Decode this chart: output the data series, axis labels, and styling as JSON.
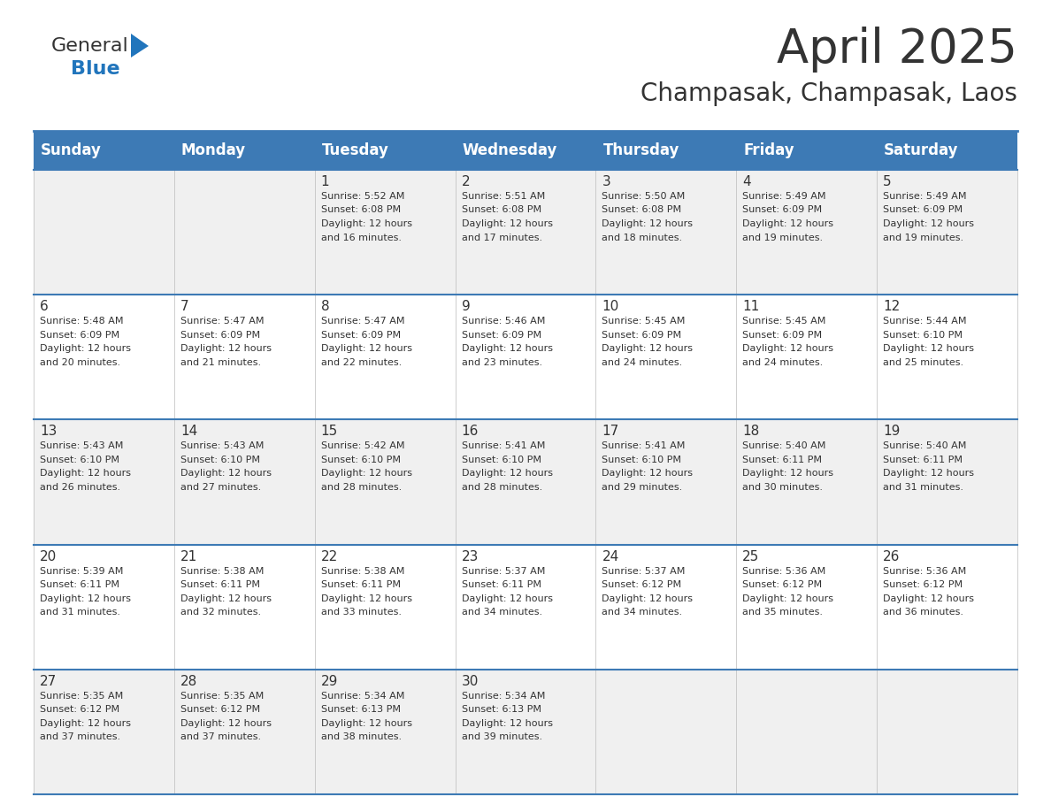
{
  "title": "April 2025",
  "subtitle": "Champasak, Champasak, Laos",
  "header_bg": "#3d7ab5",
  "header_text": "#ffffff",
  "header_days": [
    "Sunday",
    "Monday",
    "Tuesday",
    "Wednesday",
    "Thursday",
    "Friday",
    "Saturday"
  ],
  "row_bg_odd": "#f0f0f0",
  "row_bg_even": "#ffffff",
  "divider_color": "#3d7ab5",
  "text_color": "#333333",
  "logo_general_color": "#333333",
  "logo_blue_color": "#2175bc",
  "days": [
    {
      "day": 1,
      "col": 2,
      "row": 0,
      "sunrise": "5:52 AM",
      "sunset": "6:08 PM",
      "daylight": "12 hours and 16 minutes."
    },
    {
      "day": 2,
      "col": 3,
      "row": 0,
      "sunrise": "5:51 AM",
      "sunset": "6:08 PM",
      "daylight": "12 hours and 17 minutes."
    },
    {
      "day": 3,
      "col": 4,
      "row": 0,
      "sunrise": "5:50 AM",
      "sunset": "6:08 PM",
      "daylight": "12 hours and 18 minutes."
    },
    {
      "day": 4,
      "col": 5,
      "row": 0,
      "sunrise": "5:49 AM",
      "sunset": "6:09 PM",
      "daylight": "12 hours and 19 minutes."
    },
    {
      "day": 5,
      "col": 6,
      "row": 0,
      "sunrise": "5:49 AM",
      "sunset": "6:09 PM",
      "daylight": "12 hours and 19 minutes."
    },
    {
      "day": 6,
      "col": 0,
      "row": 1,
      "sunrise": "5:48 AM",
      "sunset": "6:09 PM",
      "daylight": "12 hours and 20 minutes."
    },
    {
      "day": 7,
      "col": 1,
      "row": 1,
      "sunrise": "5:47 AM",
      "sunset": "6:09 PM",
      "daylight": "12 hours and 21 minutes."
    },
    {
      "day": 8,
      "col": 2,
      "row": 1,
      "sunrise": "5:47 AM",
      "sunset": "6:09 PM",
      "daylight": "12 hours and 22 minutes."
    },
    {
      "day": 9,
      "col": 3,
      "row": 1,
      "sunrise": "5:46 AM",
      "sunset": "6:09 PM",
      "daylight": "12 hours and 23 minutes."
    },
    {
      "day": 10,
      "col": 4,
      "row": 1,
      "sunrise": "5:45 AM",
      "sunset": "6:09 PM",
      "daylight": "12 hours and 24 minutes."
    },
    {
      "day": 11,
      "col": 5,
      "row": 1,
      "sunrise": "5:45 AM",
      "sunset": "6:09 PM",
      "daylight": "12 hours and 24 minutes."
    },
    {
      "day": 12,
      "col": 6,
      "row": 1,
      "sunrise": "5:44 AM",
      "sunset": "6:10 PM",
      "daylight": "12 hours and 25 minutes."
    },
    {
      "day": 13,
      "col": 0,
      "row": 2,
      "sunrise": "5:43 AM",
      "sunset": "6:10 PM",
      "daylight": "12 hours and 26 minutes."
    },
    {
      "day": 14,
      "col": 1,
      "row": 2,
      "sunrise": "5:43 AM",
      "sunset": "6:10 PM",
      "daylight": "12 hours and 27 minutes."
    },
    {
      "day": 15,
      "col": 2,
      "row": 2,
      "sunrise": "5:42 AM",
      "sunset": "6:10 PM",
      "daylight": "12 hours and 28 minutes."
    },
    {
      "day": 16,
      "col": 3,
      "row": 2,
      "sunrise": "5:41 AM",
      "sunset": "6:10 PM",
      "daylight": "12 hours and 28 minutes."
    },
    {
      "day": 17,
      "col": 4,
      "row": 2,
      "sunrise": "5:41 AM",
      "sunset": "6:10 PM",
      "daylight": "12 hours and 29 minutes."
    },
    {
      "day": 18,
      "col": 5,
      "row": 2,
      "sunrise": "5:40 AM",
      "sunset": "6:11 PM",
      "daylight": "12 hours and 30 minutes."
    },
    {
      "day": 19,
      "col": 6,
      "row": 2,
      "sunrise": "5:40 AM",
      "sunset": "6:11 PM",
      "daylight": "12 hours and 31 minutes."
    },
    {
      "day": 20,
      "col": 0,
      "row": 3,
      "sunrise": "5:39 AM",
      "sunset": "6:11 PM",
      "daylight": "12 hours and 31 minutes."
    },
    {
      "day": 21,
      "col": 1,
      "row": 3,
      "sunrise": "5:38 AM",
      "sunset": "6:11 PM",
      "daylight": "12 hours and 32 minutes."
    },
    {
      "day": 22,
      "col": 2,
      "row": 3,
      "sunrise": "5:38 AM",
      "sunset": "6:11 PM",
      "daylight": "12 hours and 33 minutes."
    },
    {
      "day": 23,
      "col": 3,
      "row": 3,
      "sunrise": "5:37 AM",
      "sunset": "6:11 PM",
      "daylight": "12 hours and 34 minutes."
    },
    {
      "day": 24,
      "col": 4,
      "row": 3,
      "sunrise": "5:37 AM",
      "sunset": "6:12 PM",
      "daylight": "12 hours and 34 minutes."
    },
    {
      "day": 25,
      "col": 5,
      "row": 3,
      "sunrise": "5:36 AM",
      "sunset": "6:12 PM",
      "daylight": "12 hours and 35 minutes."
    },
    {
      "day": 26,
      "col": 6,
      "row": 3,
      "sunrise": "5:36 AM",
      "sunset": "6:12 PM",
      "daylight": "12 hours and 36 minutes."
    },
    {
      "day": 27,
      "col": 0,
      "row": 4,
      "sunrise": "5:35 AM",
      "sunset": "6:12 PM",
      "daylight": "12 hours and 37 minutes."
    },
    {
      "day": 28,
      "col": 1,
      "row": 4,
      "sunrise": "5:35 AM",
      "sunset": "6:12 PM",
      "daylight": "12 hours and 37 minutes."
    },
    {
      "day": 29,
      "col": 2,
      "row": 4,
      "sunrise": "5:34 AM",
      "sunset": "6:13 PM",
      "daylight": "12 hours and 38 minutes."
    },
    {
      "day": 30,
      "col": 3,
      "row": 4,
      "sunrise": "5:34 AM",
      "sunset": "6:13 PM",
      "daylight": "12 hours and 39 minutes."
    }
  ]
}
